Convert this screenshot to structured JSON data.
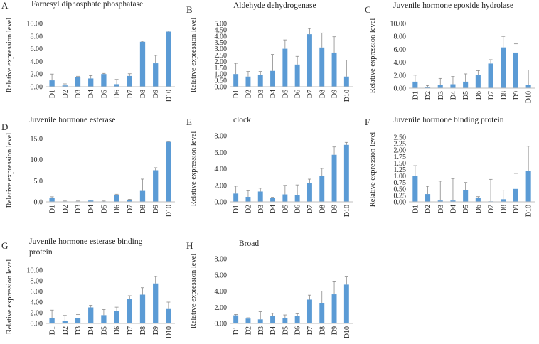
{
  "chart_data": [
    {
      "panel": "A",
      "type": "bar",
      "title": "Farnesyl diphosphate phosphatase",
      "title_lines": [
        "Farnesyl diphosphate phosphatase"
      ],
      "xlabel": "",
      "ylabel": "Relative expression level",
      "categories": [
        "D1",
        "D2",
        "D3",
        "D4",
        "D5",
        "D6",
        "D7",
        "D8",
        "D9",
        "D10"
      ],
      "values": [
        1.0,
        0.2,
        1.5,
        1.3,
        2.0,
        0.4,
        1.7,
        7.1,
        3.7,
        8.7
      ],
      "errors": [
        1.0,
        0.25,
        0.15,
        0.45,
        0.1,
        0.75,
        0.35,
        0.1,
        1.25,
        0.1
      ],
      "ylim": [
        0,
        10
      ],
      "yticks": [
        "0.00",
        "2.00",
        "4.00",
        "6.00",
        "8.00",
        "10.00"
      ],
      "color": "#5b9bd5"
    },
    {
      "panel": "B",
      "type": "bar",
      "title": "Aldehyde dehydrogenase",
      "title_lines": [
        "Aldehyde dehydrogenase"
      ],
      "xlabel": "",
      "ylabel": "Relative expression level",
      "categories": [
        "D1",
        "D2",
        "D3",
        "D4",
        "D5",
        "D6",
        "D7",
        "D8",
        "D9",
        "D10"
      ],
      "values": [
        1.0,
        0.8,
        0.9,
        1.25,
        3.0,
        1.75,
        4.15,
        3.1,
        2.7,
        0.8
      ],
      "errors": [
        0.85,
        0.4,
        0.3,
        1.3,
        0.7,
        0.65,
        0.45,
        1.15,
        1.25,
        1.3
      ],
      "ylim": [
        0,
        5
      ],
      "yticks": [
        "0.00",
        "0.50",
        "1.00",
        "1.50",
        "2.00",
        "2.50",
        "3.00",
        "3.50",
        "4.00",
        "4.50",
        "5.00"
      ],
      "color": "#5b9bd5"
    },
    {
      "panel": "C",
      "type": "bar",
      "title": "Juvenile hormone epoxide hydrolase",
      "title_lines": [
        "Juvenile hormone epoxide hydrolase"
      ],
      "xlabel": "",
      "ylabel": "Relative expression level",
      "categories": [
        "D1",
        "D2",
        "D3",
        "D4",
        "D5",
        "D6",
        "D7",
        "D8",
        "D9",
        "D10"
      ],
      "values": [
        1.0,
        0.2,
        0.5,
        0.6,
        1.0,
        2.0,
        3.8,
        6.3,
        5.5,
        0.5
      ],
      "errors": [
        1.0,
        0.2,
        1.0,
        1.2,
        1.2,
        0.7,
        0.6,
        1.7,
        1.35,
        2.3
      ],
      "ylim": [
        0,
        10
      ],
      "yticks": [
        "0.00",
        "2.00",
        "4.00",
        "6.00",
        "8.00",
        "10.00"
      ],
      "color": "#5b9bd5"
    },
    {
      "panel": "D",
      "type": "bar",
      "title": "Juvenile hormone esterase",
      "title_lines": [
        "Juvenile hormone esterase"
      ],
      "xlabel": "",
      "ylabel": "Relative expression level",
      "categories": [
        "D1",
        "D2",
        "D3",
        "D4",
        "D5",
        "D6",
        "D7",
        "D8",
        "D9",
        "D10"
      ],
      "values": [
        1.0,
        0.1,
        0.1,
        0.3,
        0.1,
        1.6,
        0.4,
        2.6,
        7.5,
        14.2
      ],
      "errors": [
        0.2,
        0.1,
        0.1,
        0.1,
        0.1,
        0.2,
        0.2,
        2.8,
        0.6,
        0.1
      ],
      "ylim": [
        0,
        15
      ],
      "yticks": [
        "0.0",
        "5.0",
        "10.0",
        "15.0"
      ],
      "color": "#5b9bd5"
    },
    {
      "panel": "E",
      "type": "bar",
      "title": "clock",
      "title_lines": [
        "clock"
      ],
      "xlabel": "",
      "ylabel": "Relative expression level",
      "categories": [
        "D1",
        "D2",
        "D3",
        "D4",
        "D5",
        "D6",
        "D7",
        "D8",
        "D9",
        "D10"
      ],
      "values": [
        1.0,
        0.6,
        1.25,
        0.45,
        0.9,
        0.85,
        2.3,
        3.1,
        5.7,
        6.9
      ],
      "errors": [
        0.9,
        0.75,
        0.4,
        0.1,
        1.1,
        1.2,
        0.45,
        0.95,
        0.95,
        0.3
      ],
      "ylim": [
        0,
        8
      ],
      "yticks": [
        "0.00",
        "2.00",
        "4.00",
        "6.00",
        "8.00"
      ],
      "color": "#5b9bd5"
    },
    {
      "panel": "F",
      "type": "bar",
      "title": "Juvenile hormone binding protein",
      "title_lines": [
        "Juvenile hormone binding protein"
      ],
      "xlabel": "",
      "ylabel": "Relative expression level",
      "categories": [
        "D1",
        "D2",
        "D3",
        "D4",
        "D5",
        "D6",
        "D7",
        "D8",
        "D9",
        "D10"
      ],
      "values": [
        1.0,
        0.3,
        0.05,
        0.05,
        0.45,
        0.15,
        0.02,
        0.1,
        0.5,
        1.2
      ],
      "errors": [
        0.4,
        0.3,
        0.75,
        0.85,
        0.3,
        0.05,
        0.85,
        0.35,
        0.6,
        0.95
      ],
      "ylim": [
        0,
        2.5
      ],
      "yticks": [
        "0.00",
        "0.25",
        "0.50",
        "0.75",
        "1.00",
        "1.25",
        "1.50",
        "1.75",
        "2.00",
        "2.25",
        "2.50"
      ],
      "color": "#5b9bd5"
    },
    {
      "panel": "G",
      "type": "bar",
      "title": "Juvenile hormone esterase binding protein",
      "title_lines": [
        "Juvenile hormone esterase binding",
        "protein"
      ],
      "xlabel": "",
      "ylabel": "Relative expression level",
      "categories": [
        "D1",
        "D2",
        "D3",
        "D4",
        "D5",
        "D6",
        "D7",
        "D8",
        "D9",
        "D10"
      ],
      "values": [
        1.0,
        0.5,
        1.05,
        3.0,
        1.55,
        2.3,
        4.6,
        5.4,
        7.5,
        2.7
      ],
      "errors": [
        1.5,
        1.0,
        0.6,
        0.4,
        1.05,
        0.75,
        0.6,
        1.3,
        1.3,
        1.3
      ],
      "ylim": [
        0,
        10
      ],
      "yticks": [
        "0.00",
        "2.00",
        "4.00",
        "6.00",
        "8.00",
        "10.00"
      ],
      "color": "#5b9bd5"
    },
    {
      "panel": "H",
      "type": "bar",
      "title": "Broad",
      "title_lines": [
        "Broad"
      ],
      "xlabel": "",
      "ylabel": "Relative expression level",
      "categories": [
        "D1",
        "D2",
        "D3",
        "D4",
        "D5",
        "D6",
        "D7",
        "D8",
        "D9",
        "D10"
      ],
      "values": [
        1.0,
        0.6,
        0.5,
        0.9,
        0.7,
        0.9,
        2.95,
        2.5,
        3.6,
        4.8
      ],
      "errors": [
        0.1,
        0.1,
        0.95,
        0.35,
        0.35,
        0.3,
        0.55,
        1.5,
        1.55,
        0.95
      ],
      "ylim": [
        0,
        8
      ],
      "yticks": [
        "0.00",
        "2.00",
        "4.00",
        "6.00",
        "8.00"
      ],
      "color": "#5b9bd5"
    }
  ]
}
